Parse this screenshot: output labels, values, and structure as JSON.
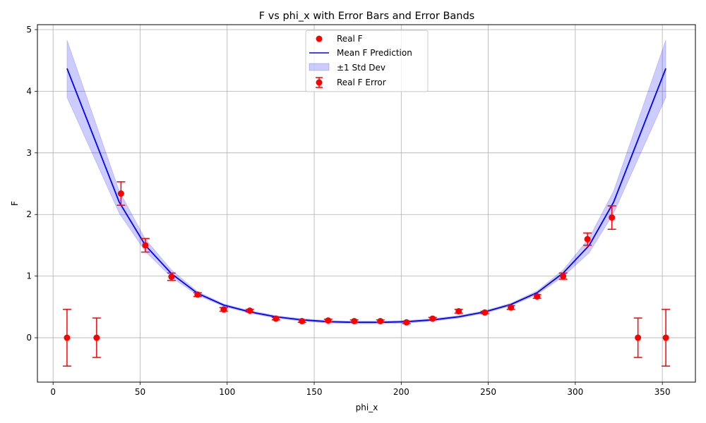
{
  "chart_data": {
    "type": "line",
    "title": "F vs phi_x with Error Bars and Error Bands",
    "xlabel": "phi_x",
    "ylabel": "F",
    "xlim": [
      -9,
      369
    ],
    "ylim": [
      -0.72,
      5.08
    ],
    "xticks": [
      0,
      50,
      100,
      150,
      200,
      250,
      300,
      350
    ],
    "yticks": [
      0,
      1,
      2,
      3,
      4,
      5
    ],
    "grid": true,
    "legend_position": "top-center",
    "legend": {
      "real": "Real F",
      "mean": "Mean F Prediction",
      "band": "±1 Std Dev",
      "error": "Real F Error"
    },
    "colors": {
      "real": "#ff0000",
      "mean": "#0000ff",
      "band": "#0000ff",
      "grid": "#b0b0b0"
    },
    "prediction": {
      "x": [
        8,
        38,
        53,
        68,
        83,
        98,
        113,
        128,
        143,
        158,
        173,
        188,
        203,
        218,
        233,
        248,
        263,
        278,
        293,
        308,
        322,
        352
      ],
      "mean": [
        4.37,
        2.2,
        1.5,
        1.04,
        0.72,
        0.53,
        0.42,
        0.34,
        0.29,
        0.26,
        0.25,
        0.25,
        0.26,
        0.29,
        0.34,
        0.42,
        0.54,
        0.73,
        1.05,
        1.5,
        2.2,
        4.37
      ],
      "lower": [
        3.9,
        2.02,
        1.4,
        0.98,
        0.69,
        0.51,
        0.4,
        0.32,
        0.27,
        0.24,
        0.23,
        0.23,
        0.24,
        0.27,
        0.32,
        0.4,
        0.52,
        0.7,
        0.99,
        1.38,
        2.02,
        3.9
      ],
      "upper": [
        4.83,
        2.38,
        1.6,
        1.1,
        0.75,
        0.55,
        0.44,
        0.36,
        0.31,
        0.28,
        0.27,
        0.27,
        0.28,
        0.31,
        0.36,
        0.44,
        0.56,
        0.76,
        1.1,
        1.62,
        2.38,
        4.83
      ]
    },
    "real": {
      "x": [
        8,
        25,
        39,
        53,
        68,
        83,
        98,
        113,
        128,
        143,
        158,
        173,
        188,
        203,
        218,
        233,
        248,
        263,
        278,
        293,
        307,
        321,
        336,
        352
      ],
      "y": [
        0,
        0,
        2.34,
        1.5,
        0.99,
        0.7,
        0.46,
        0.44,
        0.31,
        0.27,
        0.28,
        0.27,
        0.27,
        0.25,
        0.31,
        0.43,
        0.41,
        0.49,
        0.67,
        1.0,
        1.6,
        1.95,
        0,
        0
      ],
      "err": [
        0.46,
        0.32,
        0.19,
        0.11,
        0.06,
        0.03,
        0.03,
        0.02,
        0.02,
        0.02,
        0.02,
        0.02,
        0.02,
        0.02,
        0.02,
        0.03,
        0.02,
        0.03,
        0.03,
        0.05,
        0.1,
        0.19,
        0.32,
        0.46
      ]
    }
  }
}
